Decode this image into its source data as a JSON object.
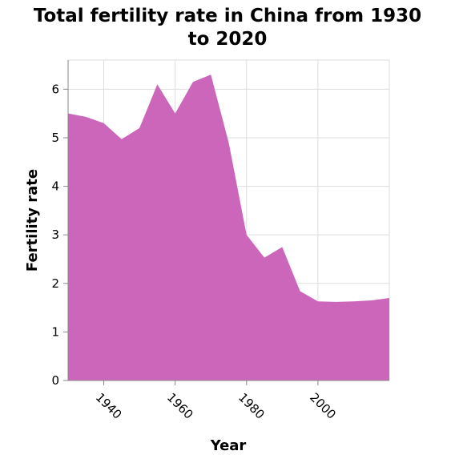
{
  "chart_data": {
    "type": "area",
    "title_lines": [
      "Total fertility rate in China from 1930",
      "to 2020"
    ],
    "xlabel": "Year",
    "ylabel": "Fertility rate",
    "xlim": [
      1930,
      2020
    ],
    "ylim": [
      0,
      6.6
    ],
    "x_ticks": [
      1940,
      1960,
      1980,
      2000
    ],
    "y_ticks": [
      0,
      1,
      2,
      3,
      4,
      5,
      6
    ],
    "grid": true,
    "color": "#cc66bb",
    "x": [
      1930,
      1935,
      1940,
      1945,
      1950,
      1955,
      1960,
      1965,
      1970,
      1975,
      1980,
      1985,
      1990,
      1995,
      2000,
      2005,
      2010,
      2015,
      2020
    ],
    "values": [
      5.5,
      5.43,
      5.3,
      4.97,
      5.2,
      6.1,
      5.5,
      6.15,
      6.3,
      4.9,
      3.0,
      2.53,
      2.75,
      1.84,
      1.63,
      1.62,
      1.63,
      1.65,
      1.7
    ]
  }
}
